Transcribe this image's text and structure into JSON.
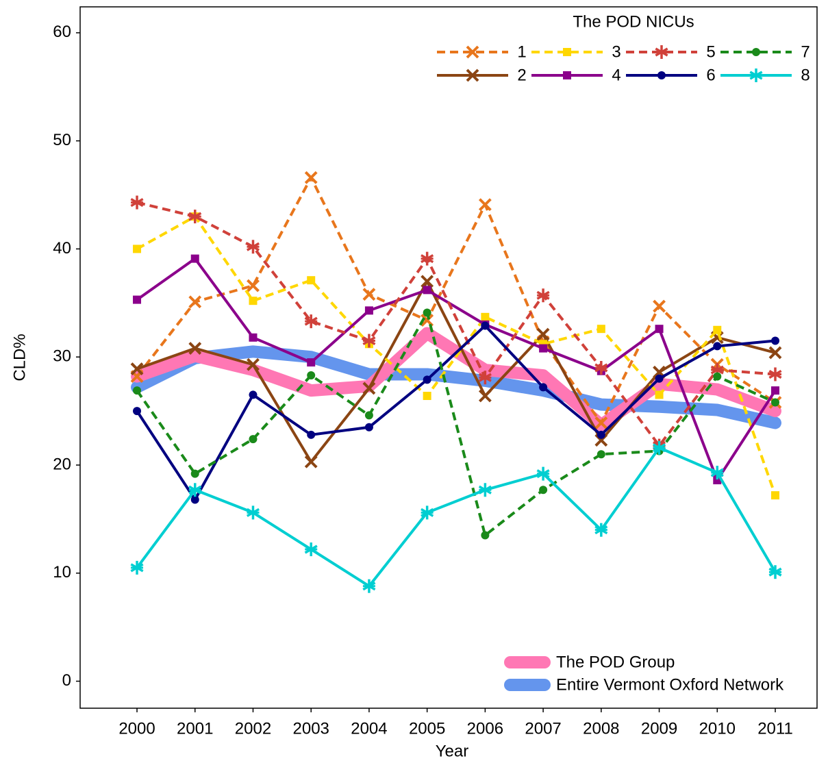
{
  "chart_data": {
    "type": "line",
    "x_label": "Year",
    "y_label": "CLD%",
    "legend_title": "The POD NICUs",
    "x": [
      2000,
      2001,
      2002,
      2003,
      2004,
      2005,
      2006,
      2007,
      2008,
      2009,
      2010,
      2011
    ],
    "xlim": [
      1999.02,
      2011.72
    ],
    "xticks": [
      2000,
      2001,
      2002,
      2003,
      2004,
      2005,
      2006,
      2007,
      2008,
      2009,
      2010,
      2011
    ],
    "ylim": [
      -2.5,
      62.4
    ],
    "yticks": [
      0,
      10,
      20,
      30,
      40,
      50,
      60
    ],
    "grid": false,
    "series": [
      {
        "name": "Entire Vermont Oxford Network",
        "color": "#6495ed",
        "line": "band",
        "values": [
          27.2,
          29.9,
          30.5,
          30.0,
          28.4,
          28.4,
          27.8,
          26.9,
          25.6,
          25.4,
          25.1,
          23.9
        ]
      },
      {
        "name": "The POD Group",
        "color": "#ff77b4",
        "line": "band",
        "values": [
          28.2,
          30.1,
          28.8,
          26.9,
          27.3,
          32.2,
          28.8,
          28.3,
          23.7,
          27.5,
          27.0,
          25.0
        ]
      },
      {
        "name": "1",
        "color": "#e8761c",
        "line": "dashed",
        "marker": "x",
        "values": [
          28.2,
          35.1,
          36.6,
          46.6,
          35.8,
          33.4,
          44.1,
          31.4,
          23.9,
          34.7,
          29.3,
          25.8
        ]
      },
      {
        "name": "2",
        "color": "#8b4513",
        "line": "solid",
        "marker": "x",
        "values": [
          28.9,
          30.8,
          29.3,
          20.3,
          27.1,
          37.0,
          26.4,
          32.1,
          22.3,
          28.6,
          31.8,
          30.4
        ]
      },
      {
        "name": "3",
        "color": "#ffd700",
        "line": "dashed",
        "marker": "square",
        "values": [
          40.0,
          43.0,
          35.2,
          37.1,
          31.2,
          26.4,
          33.7,
          31.2,
          32.6,
          26.5,
          32.5,
          17.2
        ]
      },
      {
        "name": "4",
        "color": "#8b008b",
        "line": "solid",
        "marker": "square",
        "values": [
          35.3,
          39.1,
          31.8,
          29.5,
          34.3,
          36.2,
          33.0,
          30.8,
          28.7,
          32.6,
          18.6,
          26.9
        ]
      },
      {
        "name": "5",
        "color": "#d0413a",
        "line": "dashed",
        "marker": "star",
        "values": [
          44.3,
          43.0,
          40.2,
          33.3,
          31.5,
          39.1,
          28.1,
          35.7,
          29.0,
          21.8,
          28.8,
          28.4
        ]
      },
      {
        "name": "6",
        "color": "#000080",
        "line": "solid",
        "marker": "circle",
        "values": [
          25.0,
          16.8,
          26.5,
          22.8,
          23.5,
          27.9,
          32.9,
          27.2,
          22.8,
          28.0,
          31.0,
          31.5
        ]
      },
      {
        "name": "7",
        "color": "#1a8a1a",
        "line": "dashed",
        "marker": "circle",
        "values": [
          26.9,
          19.2,
          22.4,
          28.3,
          24.6,
          34.1,
          13.5,
          17.7,
          21.0,
          21.3,
          28.2,
          25.8
        ]
      },
      {
        "name": "8",
        "color": "#00ced1",
        "line": "solid",
        "marker": "star",
        "values": [
          10.5,
          17.7,
          15.6,
          12.2,
          8.8,
          15.6,
          17.7,
          19.2,
          14.0,
          21.6,
          19.3,
          10.1
        ]
      }
    ]
  }
}
